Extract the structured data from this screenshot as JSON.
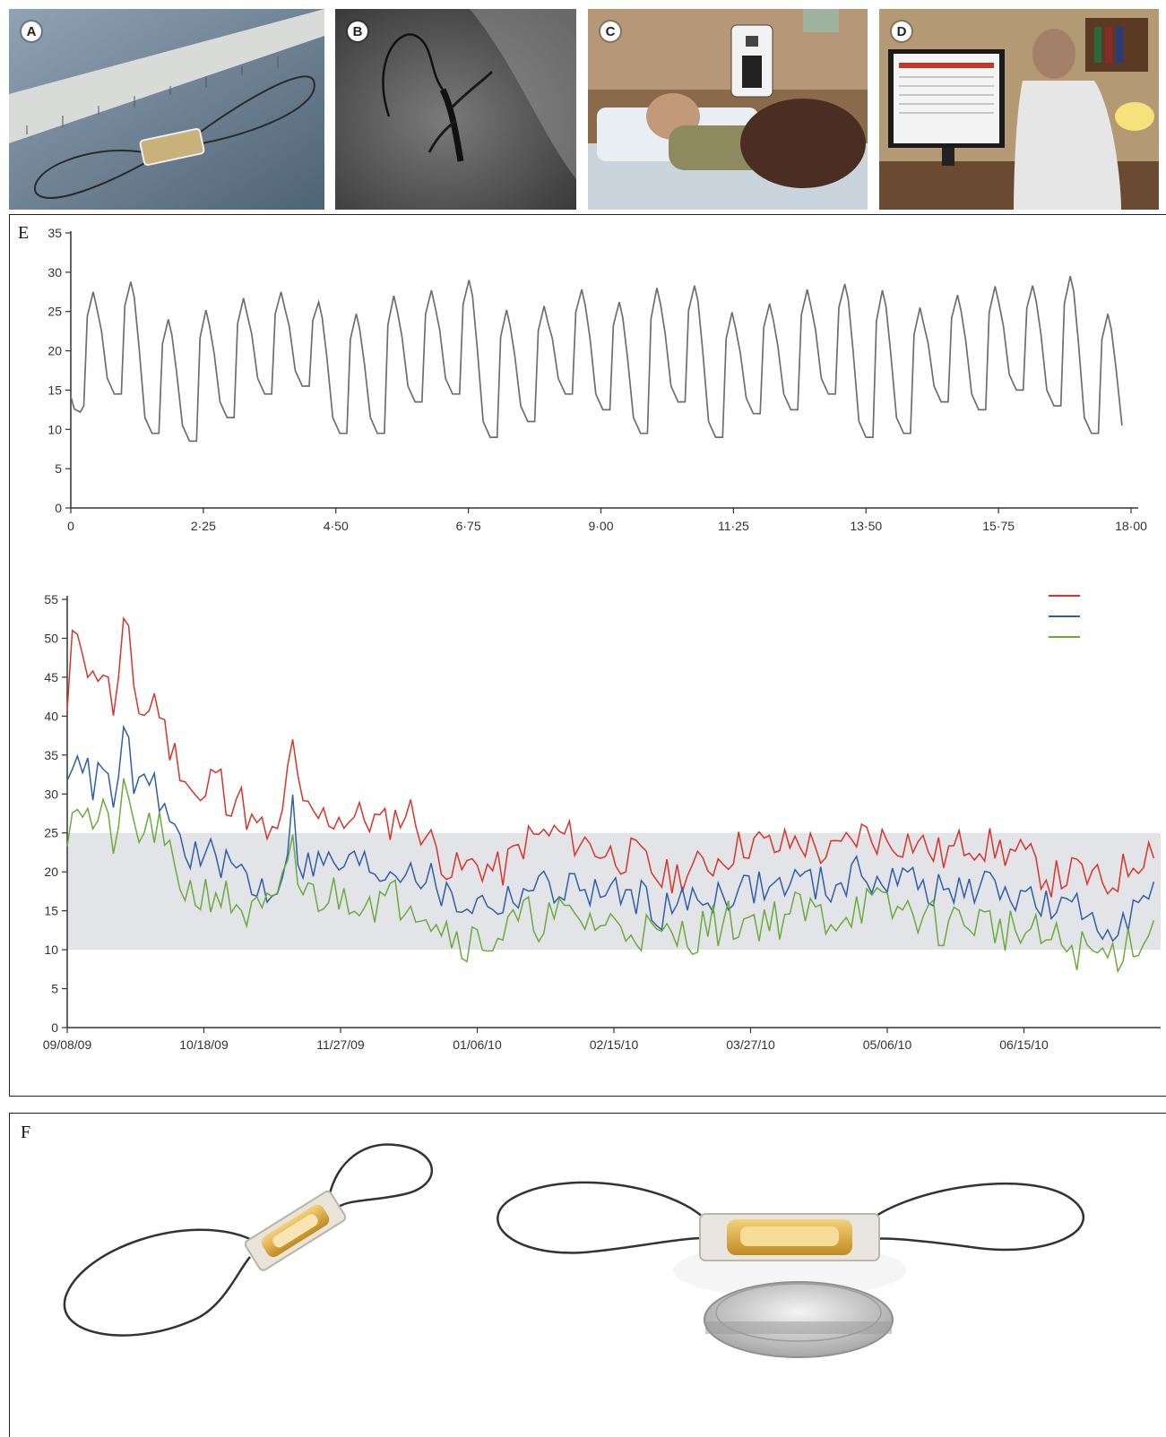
{
  "photo_panels": [
    {
      "label": "A",
      "subject": "implanted sensor beside ruler"
    },
    {
      "label": "B",
      "subject": "angiogram of pulmonary artery"
    },
    {
      "label": "C",
      "subject": "patient reading with home electronics unit"
    },
    {
      "label": "D",
      "subject": "clinician reviewing pressure data on monitor"
    }
  ],
  "panel_e_label": "E",
  "panel_f_label": "F",
  "colors": {
    "waveform": "#6e6e6e",
    "systolic": "#d9342b",
    "mean": "#2f5fa8",
    "diastolic": "#6bab3e",
    "target_band": "#e3e4e8"
  },
  "chart_data": [
    {
      "type": "line",
      "title": "",
      "xlabel": "",
      "ylabel": "",
      "xlim": [
        0,
        18.0
      ],
      "ylim": [
        0,
        35
      ],
      "yticks": [
        0,
        5,
        10,
        15,
        20,
        25,
        30,
        35
      ],
      "xticks": [
        "0",
        "2·25",
        "4·50",
        "6·75",
        "9·00",
        "11·25",
        "13·50",
        "15·75",
        "18·00"
      ],
      "xtick_values": [
        0,
        2.25,
        4.5,
        6.75,
        9.0,
        11.25,
        13.5,
        15.75,
        18.0
      ],
      "beats": {
        "start": 0.22,
        "period": 0.638,
        "peaks": [
          27.5,
          28.8,
          24,
          25.2,
          26.7,
          27.5,
          26.2,
          24.7,
          27,
          27.7,
          29,
          25.2,
          25.7,
          27.8,
          26.2,
          28,
          28.3,
          24.9,
          26,
          27.8,
          28.5,
          27.7,
          25.5,
          27.1,
          28.2,
          28.3,
          29.5,
          24.7,
          25.7,
          28.3
        ],
        "troughs": [
          12,
          13.5,
          8.5,
          7.5,
          10.5,
          13.5,
          14.5,
          8.5,
          8.5,
          12.5,
          13.5,
          8,
          10,
          13.5,
          11.5,
          8.5,
          12.5,
          8,
          11,
          11.5,
          13.5,
          8,
          8.5,
          12.5,
          11.5,
          14,
          12,
          8.5,
          7.5,
          14
        ]
      },
      "grid": false
    },
    {
      "type": "line",
      "title": "",
      "xlabel": "",
      "ylabel": "",
      "x_start": "09/08/09",
      "x_span_days": 320,
      "ylim": [
        0,
        55
      ],
      "yticks": [
        0,
        5,
        10,
        15,
        20,
        25,
        30,
        35,
        40,
        45,
        50,
        55
      ],
      "xticks": [
        "09/08/09",
        "10/18/09",
        "11/27/09",
        "01/06/10",
        "02/15/10",
        "03/27/10",
        "05/06/10",
        "06/15/10"
      ],
      "xtick_values": [
        "09/08/09",
        "10/18/09",
        "11/27/09",
        "01/06/10",
        "02/15/10",
        "03/27/10",
        "05/06/10",
        "06/15/10"
      ],
      "target_range": [
        10,
        25
      ],
      "legend": {
        "position": "top-right",
        "entries": [
          "",
          "",
          ""
        ]
      },
      "series_points": [
        {
          "name": "",
          "color_key": "systolic",
          "points": [
            [
              "09/08/09",
              40
            ],
            [
              "09/10/09",
              52
            ],
            [
              "09/12/09",
              51
            ],
            [
              "09/15/09",
              44
            ],
            [
              "09/18/09",
              47
            ],
            [
              "09/22/09",
              40
            ],
            [
              "09/25/09",
              53
            ],
            [
              "09/28/09",
              42
            ],
            [
              "10/01/09",
              40
            ],
            [
              "10/04/09",
              43
            ],
            [
              "10/07/09",
              37
            ],
            [
              "10/11/09",
              34
            ],
            [
              "10/15/09",
              30
            ],
            [
              "10/18/09",
              28
            ],
            [
              "10/21/09",
              34
            ],
            [
              "10/25/09",
              29
            ],
            [
              "10/28/09",
              30
            ],
            [
              "11/01/09",
              26
            ],
            [
              "11/05/09",
              25
            ],
            [
              "11/09/09",
              24
            ],
            [
              "11/13/09",
              38
            ],
            [
              "11/15/09",
              28
            ],
            [
              "11/20/09",
              27
            ],
            [
              "11/27/09",
              27
            ],
            [
              "12/04/09",
              27
            ],
            [
              "12/10/09",
              26
            ],
            [
              "12/17/09",
              28
            ],
            [
              "12/23/09",
              24
            ],
            [
              "12/30/09",
              20
            ],
            [
              "01/06/10",
              21
            ],
            [
              "01/13/10",
              20
            ],
            [
              "01/20/10",
              24
            ],
            [
              "01/28/10",
              25
            ],
            [
              "02/05/10",
              24
            ],
            [
              "02/15/10",
              22
            ],
            [
              "02/22/10",
              22
            ],
            [
              "03/01/10",
              19
            ],
            [
              "03/08/10",
              20
            ],
            [
              "03/15/10",
              21
            ],
            [
              "03/27/10",
              24
            ],
            [
              "04/03/10",
              23
            ],
            [
              "04/10/10",
              24
            ],
            [
              "04/20/10",
              22
            ],
            [
              "04/28/10",
              25
            ],
            [
              "05/06/10",
              24
            ],
            [
              "05/14/10",
              24
            ],
            [
              "05/22/10",
              22
            ],
            [
              "05/30/10",
              24
            ],
            [
              "06/07/10",
              23
            ],
            [
              "06/15/10",
              22
            ],
            [
              "06/23/10",
              19
            ],
            [
              "07/01/10",
              20
            ],
            [
              "07/09/10",
              18
            ],
            [
              "07/16/10",
              21
            ],
            [
              "07/24/10",
              24
            ]
          ]
        },
        {
          "name": "",
          "color_key": "mean",
          "points": [
            [
              "09/08/09",
              30
            ],
            [
              "09/10/09",
              37
            ],
            [
              "09/12/09",
              35
            ],
            [
              "09/15/09",
              31
            ],
            [
              "09/18/09",
              33
            ],
            [
              "09/22/09",
              29
            ],
            [
              "09/25/09",
              38
            ],
            [
              "09/28/09",
              31
            ],
            [
              "10/01/09",
              30
            ],
            [
              "10/04/09",
              31
            ],
            [
              "10/07/09",
              27
            ],
            [
              "10/11/09",
              24
            ],
            [
              "10/15/09",
              22
            ],
            [
              "10/18/09",
              21
            ],
            [
              "10/21/09",
              23
            ],
            [
              "10/25/09",
              20
            ],
            [
              "10/28/09",
              21
            ],
            [
              "11/01/09",
              18
            ],
            [
              "11/05/09",
              18
            ],
            [
              "11/09/09",
              18
            ],
            [
              "11/13/09",
              28
            ],
            [
              "11/15/09",
              21
            ],
            [
              "11/20/09",
              21
            ],
            [
              "11/27/09",
              21
            ],
            [
              "12/04/09",
              21
            ],
            [
              "12/10/09",
              20
            ],
            [
              "12/17/09",
              21
            ],
            [
              "12/23/09",
              19
            ],
            [
              "12/30/09",
              16
            ],
            [
              "01/06/10",
              16
            ],
            [
              "01/13/10",
              16
            ],
            [
              "01/20/10",
              18
            ],
            [
              "01/28/10",
              18
            ],
            [
              "02/05/10",
              18
            ],
            [
              "02/15/10",
              17
            ],
            [
              "02/22/10",
              17
            ],
            [
              "03/01/10",
              15
            ],
            [
              "03/08/10",
              16
            ],
            [
              "03/15/10",
              17
            ],
            [
              "03/27/10",
              18
            ],
            [
              "04/03/10",
              18
            ],
            [
              "04/10/10",
              19
            ],
            [
              "04/20/10",
              18
            ],
            [
              "04/28/10",
              20
            ],
            [
              "05/06/10",
              19
            ],
            [
              "05/14/10",
              19
            ],
            [
              "05/22/10",
              17
            ],
            [
              "05/30/10",
              18
            ],
            [
              "06/07/10",
              18
            ],
            [
              "06/15/10",
              17
            ],
            [
              "06/23/10",
              15
            ],
            [
              "07/01/10",
              15
            ],
            [
              "07/09/10",
              13
            ],
            [
              "07/16/10",
              15
            ],
            [
              "07/24/10",
              17
            ]
          ]
        },
        {
          "name": "",
          "color_key": "diastolic",
          "points": [
            [
              "09/08/09",
              26
            ],
            [
              "09/10/09",
              30
            ],
            [
              "09/12/09",
              29
            ],
            [
              "09/15/09",
              26
            ],
            [
              "09/18/09",
              27
            ],
            [
              "09/22/09",
              24
            ],
            [
              "09/25/09",
              30
            ],
            [
              "09/28/09",
              25
            ],
            [
              "10/01/09",
              25
            ],
            [
              "10/04/09",
              26
            ],
            [
              "10/07/09",
              22
            ],
            [
              "10/11/09",
              19
            ],
            [
              "10/15/09",
              17
            ],
            [
              "10/18/09",
              17
            ],
            [
              "10/21/09",
              18
            ],
            [
              "10/25/09",
              16
            ],
            [
              "10/28/09",
              16
            ],
            [
              "11/01/09",
              14
            ],
            [
              "11/05/09",
              15
            ],
            [
              "11/09/09",
              15
            ],
            [
              "11/13/09",
              25
            ],
            [
              "11/15/09",
              17
            ],
            [
              "11/20/09",
              17
            ],
            [
              "11/27/09",
              17
            ],
            [
              "12/04/09",
              17
            ],
            [
              "12/10/09",
              16
            ],
            [
              "12/17/09",
              17
            ],
            [
              "12/23/09",
              15
            ],
            [
              "12/30/09",
              12
            ],
            [
              "01/06/10",
              11
            ],
            [
              "01/13/10",
              12
            ],
            [
              "01/20/10",
              14
            ],
            [
              "01/28/10",
              14
            ],
            [
              "02/05/10",
              14
            ],
            [
              "02/15/10",
              13
            ],
            [
              "02/22/10",
              13
            ],
            [
              "03/01/10",
              11
            ],
            [
              "03/08/10",
              12
            ],
            [
              "03/15/10",
              13
            ],
            [
              "03/27/10",
              14
            ],
            [
              "04/03/10",
              14
            ],
            [
              "04/10/10",
              15
            ],
            [
              "04/20/10",
              14
            ],
            [
              "04/28/10",
              16
            ],
            [
              "05/06/10",
              15
            ],
            [
              "05/14/10",
              15
            ],
            [
              "05/22/10",
              13
            ],
            [
              "05/30/10",
              14
            ],
            [
              "06/07/10",
              13
            ],
            [
              "06/15/10",
              12
            ],
            [
              "06/23/10",
              11
            ],
            [
              "07/01/10",
              10
            ],
            [
              "07/09/10",
              9
            ],
            [
              "07/16/10",
              11
            ],
            [
              "07/24/10",
              13
            ]
          ]
        }
      ],
      "grid": false
    }
  ]
}
